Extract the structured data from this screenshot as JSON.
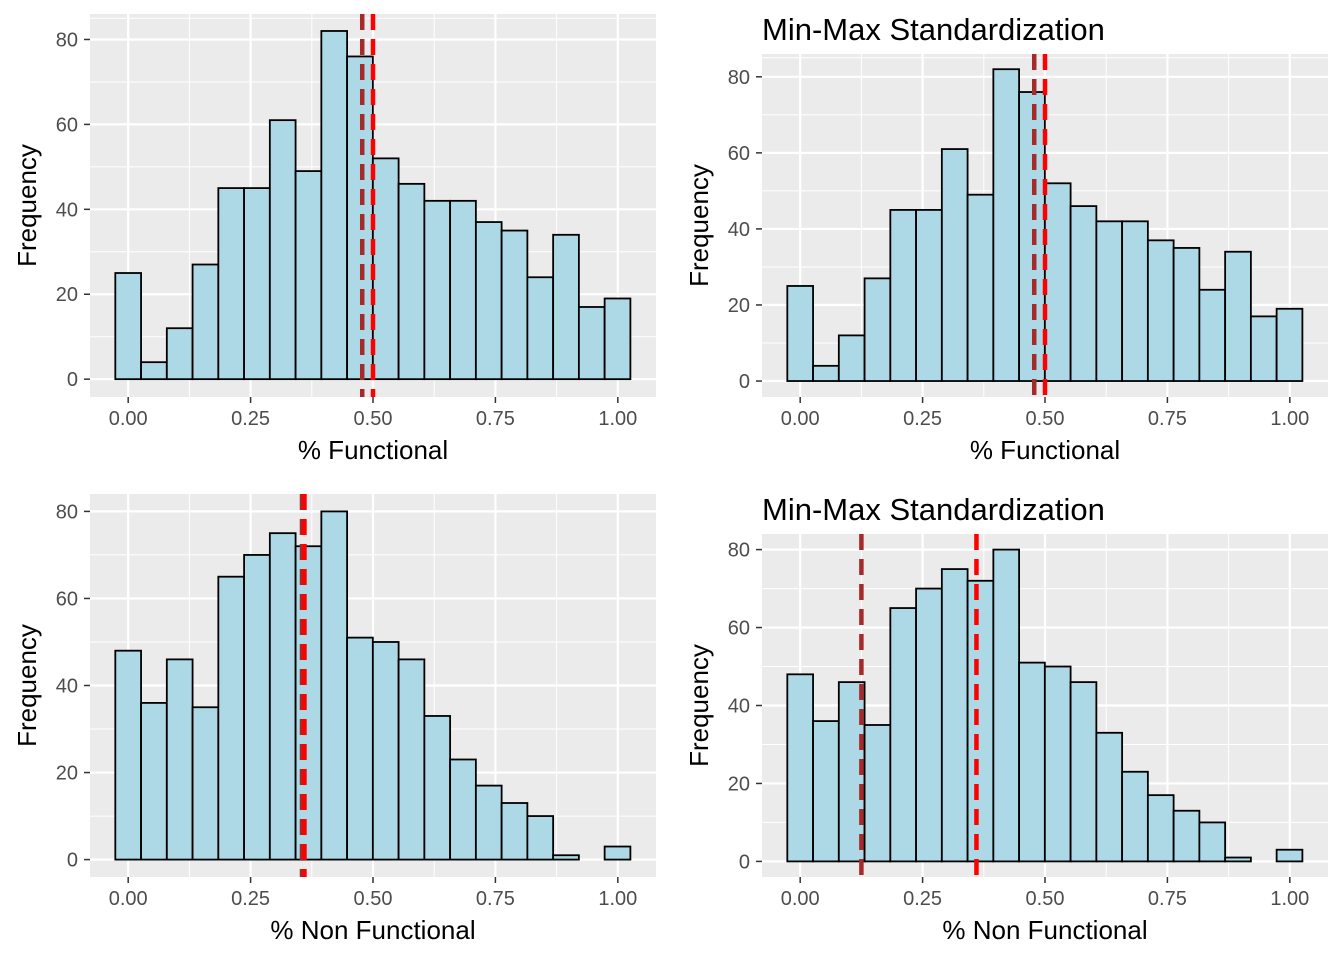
{
  "style": {
    "bar_fill": "#add8e6",
    "bar_stroke": "#000000",
    "panel_bg": "#ebebeb",
    "grid_color": "#ffffff",
    "mean_line_color": "#a52a2a",
    "median_line_color": "#ff0000"
  },
  "chart_data": [
    {
      "type": "bar",
      "title": "",
      "xlabel": "% Functional",
      "ylabel": "Frequency",
      "xlim": [
        -0.078,
        1.078
      ],
      "ylim": [
        -4.2,
        86.0
      ],
      "xticks": [
        0,
        0.25,
        0.5,
        0.75,
        1
      ],
      "xtick_labels": [
        "0.00",
        "0.25",
        "0.50",
        "0.75",
        "1.00"
      ],
      "yticks": [
        0,
        20,
        40,
        60,
        80
      ],
      "ytick_labels": [
        "0",
        "20",
        "40",
        "60",
        "80"
      ],
      "grid": true,
      "bin_width": 0.0526,
      "bin_start": -0.0263,
      "values": [
        25,
        4,
        12,
        27,
        45,
        45,
        61,
        49,
        82,
        76,
        52,
        46,
        42,
        42,
        37,
        35,
        24,
        34,
        17,
        19
      ],
      "vlines": [
        {
          "x": 0.478,
          "color": "#a52a2a"
        },
        {
          "x": 0.5,
          "color": "#ff0000"
        }
      ]
    },
    {
      "type": "bar",
      "title": "Min-Max Standardization",
      "xlabel": "% Functional",
      "ylabel": "Frequency",
      "xlim": [
        -0.078,
        1.078
      ],
      "ylim": [
        -4.2,
        86.0
      ],
      "xticks": [
        0,
        0.25,
        0.5,
        0.75,
        1
      ],
      "xtick_labels": [
        "0.00",
        "0.25",
        "0.50",
        "0.75",
        "1.00"
      ],
      "yticks": [
        0,
        20,
        40,
        60,
        80
      ],
      "ytick_labels": [
        "0",
        "20",
        "40",
        "60",
        "80"
      ],
      "grid": true,
      "bin_width": 0.0526,
      "bin_start": -0.0263,
      "values": [
        25,
        4,
        12,
        27,
        45,
        45,
        61,
        49,
        82,
        76,
        52,
        46,
        42,
        42,
        37,
        35,
        24,
        34,
        17,
        19
      ],
      "vlines": [
        {
          "x": 0.478,
          "color": "#a52a2a"
        },
        {
          "x": 0.5,
          "color": "#ff0000"
        }
      ]
    },
    {
      "type": "bar",
      "title": "",
      "xlabel": "% Non Functional",
      "ylabel": "Frequency",
      "xlim": [
        -0.078,
        1.078
      ],
      "ylim": [
        -4.0,
        84.0
      ],
      "xticks": [
        0,
        0.25,
        0.5,
        0.75,
        1
      ],
      "xtick_labels": [
        "0.00",
        "0.25",
        "0.50",
        "0.75",
        "1.00"
      ],
      "yticks": [
        0,
        20,
        40,
        60,
        80
      ],
      "ytick_labels": [
        "0",
        "20",
        "40",
        "60",
        "80"
      ],
      "grid": true,
      "bin_width": 0.0526,
      "bin_start": -0.0263,
      "values": [
        48,
        36,
        46,
        35,
        65,
        70,
        75,
        72,
        80,
        51,
        50,
        46,
        33,
        23,
        17,
        13,
        10,
        1,
        0,
        3
      ],
      "vlines": [
        {
          "x": 0.355,
          "color": "#a52a2a"
        },
        {
          "x": 0.36,
          "color": "#ff0000"
        }
      ]
    },
    {
      "type": "bar",
      "title": "Min-Max Standardization",
      "xlabel": "% Non Functional",
      "ylabel": "Frequency",
      "xlim": [
        -0.078,
        1.078
      ],
      "ylim": [
        -4.0,
        84.0
      ],
      "xticks": [
        0,
        0.25,
        0.5,
        0.75,
        1
      ],
      "xtick_labels": [
        "0.00",
        "0.25",
        "0.50",
        "0.75",
        "1.00"
      ],
      "yticks": [
        0,
        20,
        40,
        60,
        80
      ],
      "ytick_labels": [
        "0",
        "20",
        "40",
        "60",
        "80"
      ],
      "grid": true,
      "bin_width": 0.0526,
      "bin_start": -0.0263,
      "values": [
        48,
        36,
        46,
        35,
        65,
        70,
        75,
        72,
        80,
        51,
        50,
        46,
        33,
        23,
        17,
        13,
        10,
        1,
        0,
        3
      ],
      "vlines": [
        {
          "x": 0.125,
          "color": "#a52a2a"
        },
        {
          "x": 0.36,
          "color": "#ff0000"
        }
      ]
    }
  ]
}
